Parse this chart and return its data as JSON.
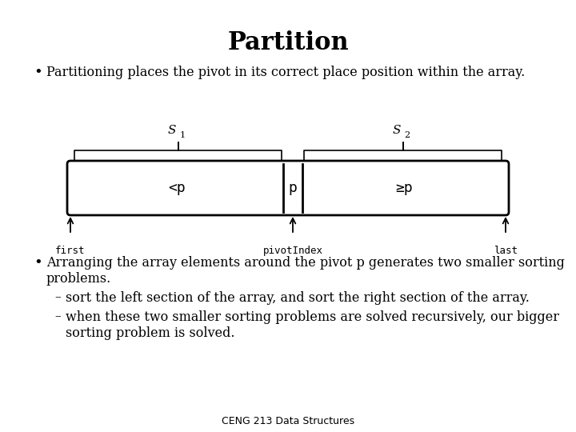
{
  "title": "Partition",
  "bullet1": "Partitioning places the pivot in its correct place position within the array.",
  "bullet2_line1": "Arranging the array elements around the pivot p generates two smaller sorting",
  "bullet2_line2": "problems.",
  "sub1": "sort the left section of the array, and sort the right section of the array.",
  "sub2_line1": "when these two smaller sorting problems are solved recursively, our bigger",
  "sub2_line2": "sorting problem is solved.",
  "footer": "CENG 213 Data Structures",
  "label_lt": "<p",
  "label_p": "p",
  "label_ge": "≥p",
  "label_S1": "S",
  "label_S1_sub": "1",
  "label_S2": "S",
  "label_S2_sub": "2",
  "label_first": "first",
  "label_pivot": "pivotIndex",
  "label_last": "last",
  "bg_color": "#ffffff",
  "text_color": "#000000"
}
